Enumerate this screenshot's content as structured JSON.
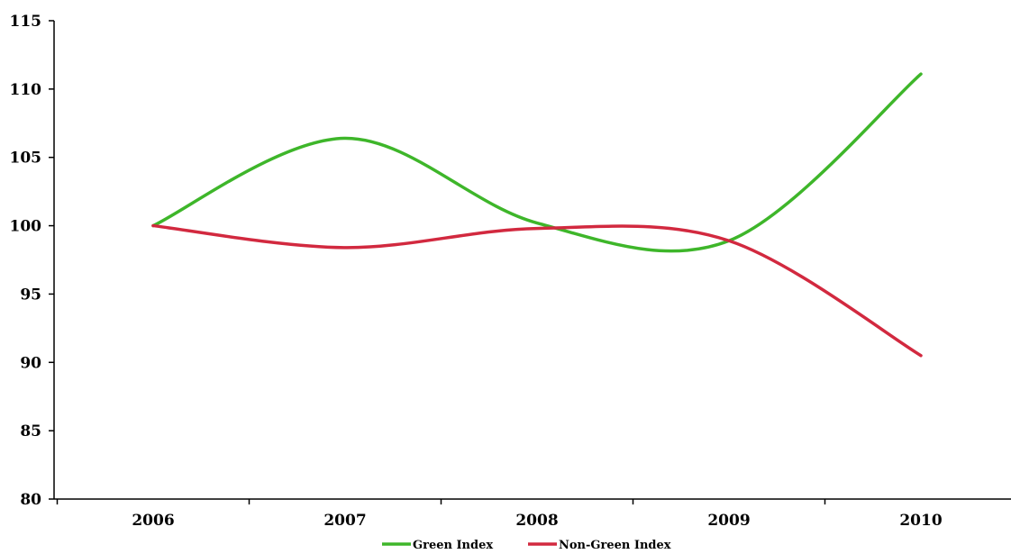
{
  "chart_data": {
    "type": "line",
    "title": "",
    "xlabel": "",
    "ylabel": "",
    "categories": [
      "2006",
      "2007",
      "2008",
      "2009",
      "2010"
    ],
    "ylim": [
      80,
      115
    ],
    "yticks": [
      80,
      85,
      90,
      95,
      100,
      105,
      110,
      115
    ],
    "smooth": true,
    "grid": false,
    "legend": "bottom",
    "series": [
      {
        "name": "Green Index",
        "color": "#3eb62a",
        "values": [
          100,
          106.4,
          100.2,
          98.9,
          111.1
        ]
      },
      {
        "name": "Non-Green Index",
        "color": "#d2293f",
        "values": [
          100,
          98.4,
          99.8,
          98.9,
          90.5
        ]
      }
    ]
  }
}
